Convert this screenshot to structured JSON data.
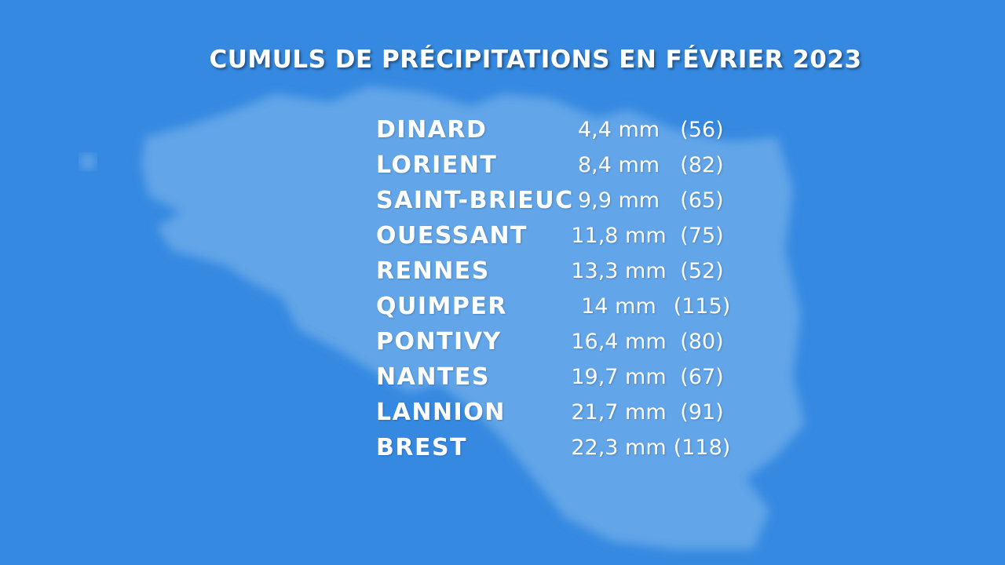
{
  "header": {
    "title": "CUMULS DE PRÉCIPITATIONS EN FÉVRIER 2023"
  },
  "table": {
    "rows": [
      [
        "DINARD",
        "4,4 mm",
        "(56)"
      ],
      [
        "LORIENT",
        "8,4 mm",
        "(82)"
      ],
      [
        "SAINT-BRIEUC",
        "9,9 mm",
        "(65)"
      ],
      [
        "OUESSANT",
        "11,8 mm",
        "(75)"
      ],
      [
        "RENNES",
        "13,3 mm",
        "(52)"
      ],
      [
        "QUIMPER",
        "14 mm",
        "(115)"
      ],
      [
        "PONTIVY",
        "16,4 mm",
        "(80)"
      ],
      [
        "NANTES",
        "19,7 mm",
        "(67)"
      ],
      [
        "LANNION",
        "21,7 mm",
        "(91)"
      ],
      [
        "BREST",
        "22,3 mm",
        "(118)"
      ]
    ]
  }
}
